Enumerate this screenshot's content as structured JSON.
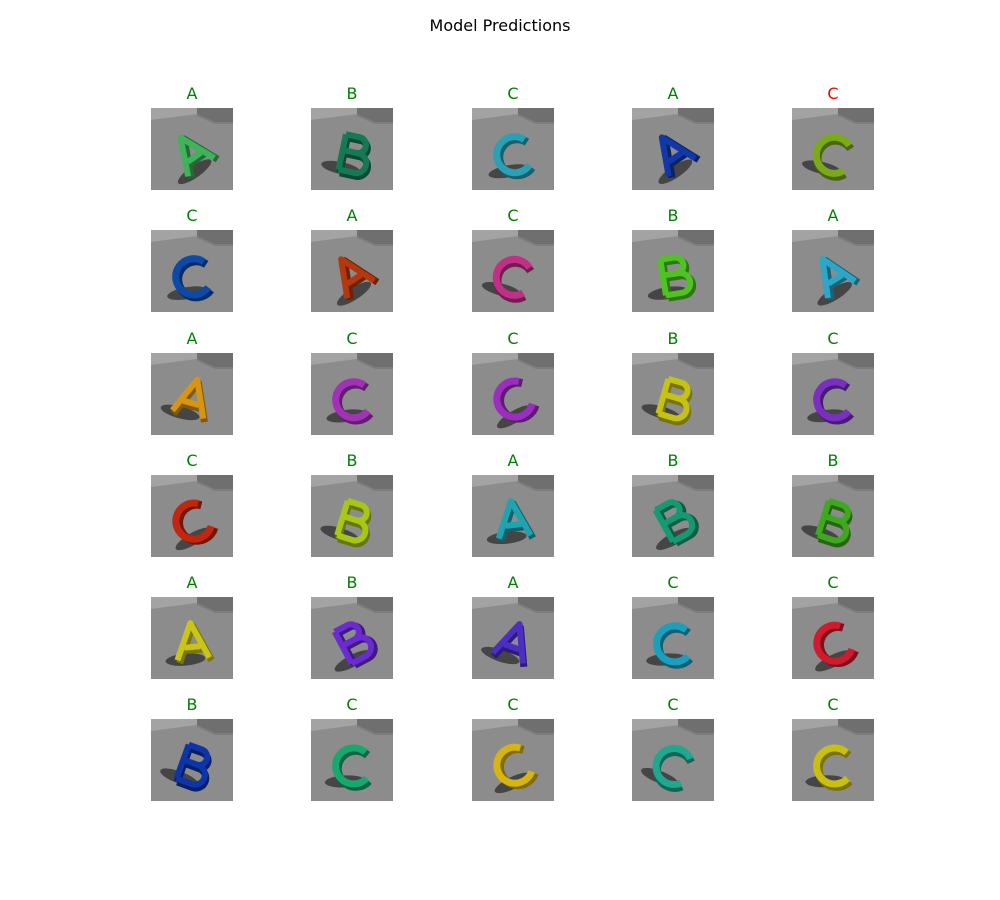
{
  "title": "Model Predictions",
  "colors": {
    "correct": "#008000",
    "incorrect": "#ff0000",
    "floor": "#8c8c8c",
    "wall_left": "#a3a3a3",
    "wall_right": "#6f6f6f",
    "wall_back": "#7d7d7d"
  },
  "chart_data": {
    "type": "image-grid",
    "rows": 6,
    "cols": 5,
    "title": "Model Predictions",
    "cells": [
      {
        "label": "A",
        "correct": true,
        "letter_color": "#3fb35a"
      },
      {
        "label": "B",
        "correct": true,
        "letter_color": "#137a55"
      },
      {
        "label": "C",
        "correct": true,
        "letter_color": "#2aa0b5"
      },
      {
        "label": "A",
        "correct": true,
        "letter_color": "#1238a8"
      },
      {
        "label": "C",
        "correct": false,
        "letter_color": "#7aaa1a"
      },
      {
        "label": "C",
        "correct": true,
        "letter_color": "#0d4aa8"
      },
      {
        "label": "A",
        "correct": true,
        "letter_color": "#b3380e"
      },
      {
        "label": "C",
        "correct": true,
        "letter_color": "#c22f86"
      },
      {
        "label": "B",
        "correct": true,
        "letter_color": "#4fc421"
      },
      {
        "label": "A",
        "correct": true,
        "letter_color": "#2ca7c8"
      },
      {
        "label": "A",
        "correct": true,
        "letter_color": "#d79512"
      },
      {
        "label": "C",
        "correct": true,
        "letter_color": "#a331b8"
      },
      {
        "label": "C",
        "correct": true,
        "letter_color": "#9b2dbf"
      },
      {
        "label": "B",
        "correct": true,
        "letter_color": "#c4c212"
      },
      {
        "label": "C",
        "correct": true,
        "letter_color": "#7a2fc0"
      },
      {
        "label": "C",
        "correct": true,
        "letter_color": "#c2270e"
      },
      {
        "label": "B",
        "correct": true,
        "letter_color": "#a7c615"
      },
      {
        "label": "A",
        "correct": true,
        "letter_color": "#1fa3b0"
      },
      {
        "label": "B",
        "correct": true,
        "letter_color": "#149a72"
      },
      {
        "label": "B",
        "correct": true,
        "letter_color": "#3fa81f"
      },
      {
        "label": "A",
        "correct": true,
        "letter_color": "#c9c416"
      },
      {
        "label": "B",
        "correct": true,
        "letter_color": "#6a2bd0"
      },
      {
        "label": "A",
        "correct": true,
        "letter_color": "#4c2ec2"
      },
      {
        "label": "C",
        "correct": true,
        "letter_color": "#1b9fbe"
      },
      {
        "label": "C",
        "correct": true,
        "letter_color": "#d01a2e"
      },
      {
        "label": "B",
        "correct": true,
        "letter_color": "#0d34a8"
      },
      {
        "label": "C",
        "correct": true,
        "letter_color": "#17a86e"
      },
      {
        "label": "C",
        "correct": true,
        "letter_color": "#d6b412"
      },
      {
        "label": "C",
        "correct": true,
        "letter_color": "#1fa88e"
      },
      {
        "label": "C",
        "correct": true,
        "letter_color": "#c9bf12"
      }
    ]
  }
}
